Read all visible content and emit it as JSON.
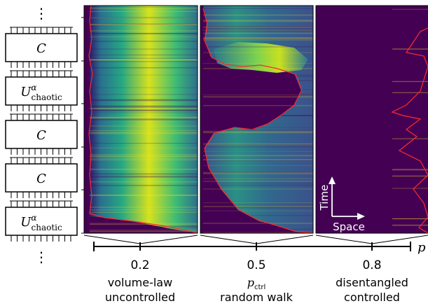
{
  "circuit": {
    "dots_top": "⋮",
    "dots_bottom": "⋮",
    "gates": [
      {
        "kind": "control",
        "label": "C"
      },
      {
        "kind": "chaotic",
        "label": "U",
        "sup": "α",
        "sub": "chaotic"
      },
      {
        "kind": "control",
        "label": "C"
      },
      {
        "kind": "control",
        "label": "C"
      },
      {
        "kind": "chaotic",
        "label": "U",
        "sup": "α",
        "sub": "chaotic"
      }
    ]
  },
  "panels": [
    {
      "p_ctrl": 0.2,
      "phase": "volume-law",
      "regime": "uncontrolled"
    },
    {
      "p_ctrl": 0.5,
      "phase_symbol": "p",
      "phase_subscript": "ctrl",
      "regime": "random walk"
    },
    {
      "p_ctrl": 0.8,
      "phase": "disentangled",
      "regime": "controlled"
    }
  ],
  "axis": {
    "ticks": [
      "0.2",
      "0.5",
      "0.8"
    ],
    "end_label": "p"
  },
  "inset": {
    "time_label": "Time",
    "space_label": "Space"
  },
  "colors": {
    "background_low": "#440154",
    "high": "#fde725",
    "boundary": "#ff2a2a"
  }
}
